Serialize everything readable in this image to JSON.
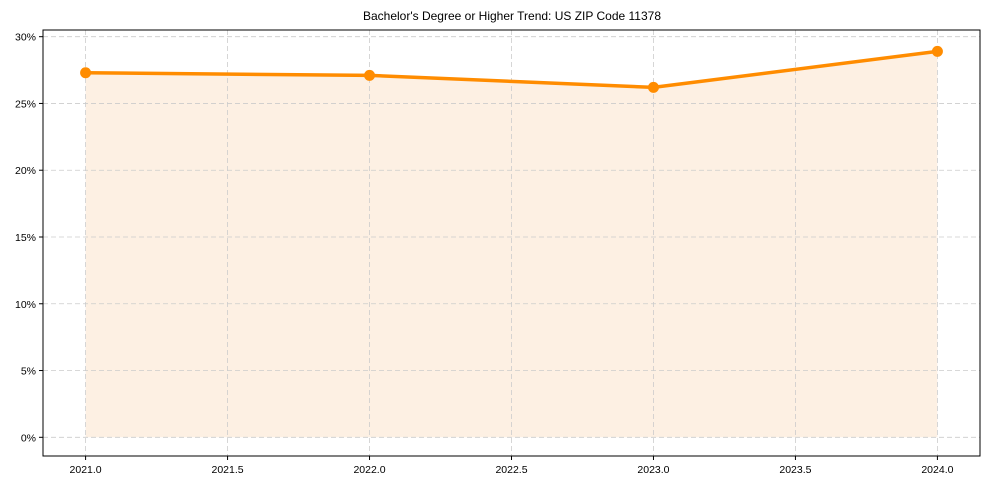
{
  "chart_data": {
    "type": "line",
    "title": "Bachelor's Degree or Higher Trend: US ZIP Code 11378",
    "xlabel": "",
    "ylabel": "",
    "x": [
      2021,
      2022,
      2023,
      2024
    ],
    "series": [
      {
        "name": "Bachelor's Degree or Higher",
        "values": [
          27.3,
          27.1,
          26.2,
          28.9
        ],
        "unit": "%"
      }
    ],
    "xlim": [
      2020.85,
      2024.15
    ],
    "ylim": [
      -1.4,
      30.5
    ],
    "x_ticks": [
      "2021.0",
      "2021.5",
      "2022.0",
      "2022.5",
      "2023.0",
      "2023.5",
      "2024.0"
    ],
    "y_ticks": [
      "0%",
      "5%",
      "10%",
      "15%",
      "20%",
      "25%",
      "30%"
    ],
    "grid": true,
    "legend": null,
    "colors": {
      "line": "#ff8c00",
      "fill": "#fdf0e3",
      "grid": "#cccccc"
    }
  }
}
